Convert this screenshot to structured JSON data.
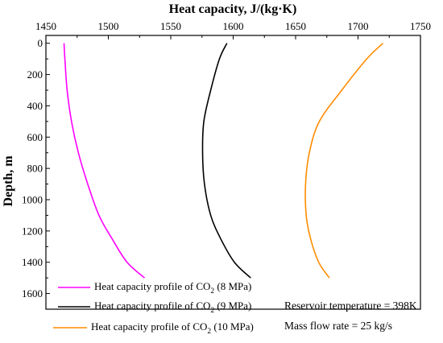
{
  "chart_data": {
    "type": "line",
    "xlabel": "Heat capacity, J/(kg·K)",
    "ylabel": "Depth, m",
    "xlim": [
      1450,
      1750
    ],
    "ylim": [
      1700,
      -50
    ],
    "x_axis_position": "top",
    "y_axis_inverted": true,
    "x_ticks": [
      1450,
      1500,
      1550,
      1600,
      1650,
      1700,
      1750
    ],
    "y_ticks": [
      0,
      200,
      400,
      600,
      800,
      1000,
      1200,
      1400,
      1600
    ],
    "grid": false,
    "legend_position": "bottom-left",
    "series": [
      {
        "name_parts": [
          "Heat capacity profile of CO",
          "2",
          " (8 MPa)"
        ],
        "color": "#ff00ff",
        "x": [
          1464.5,
          1465.2,
          1467,
          1470.5,
          1476,
          1483.5,
          1492.5,
          1503,
          1515,
          1529
        ],
        "y": [
          0,
          100,
          300,
          500,
          700,
          900,
          1100,
          1250,
          1400,
          1500
        ]
      },
      {
        "name_parts": [
          "Heat capacity profile of CO",
          "2",
          " (9 MPa)"
        ],
        "color": "#000000",
        "x": [
          1595,
          1589,
          1582,
          1576.5,
          1575.5,
          1577,
          1582,
          1590,
          1601,
          1614
        ],
        "y": [
          0,
          100,
          300,
          500,
          700,
          900,
          1100,
          1250,
          1400,
          1500
        ]
      },
      {
        "name_parts": [
          "Heat capacity profile of CO",
          "2",
          " (10 MPa)"
        ],
        "color": "#ff8c00",
        "x": [
          1720,
          1707,
          1687,
          1669,
          1661,
          1658,
          1658.5,
          1662,
          1668.5,
          1677
        ],
        "y": [
          0,
          100,
          300,
          500,
          700,
          900,
          1100,
          1250,
          1400,
          1500
        ]
      }
    ],
    "annotations": [
      "Reservoir temperature = 398K",
      "Mass flow rate = 25 kg/s"
    ]
  }
}
